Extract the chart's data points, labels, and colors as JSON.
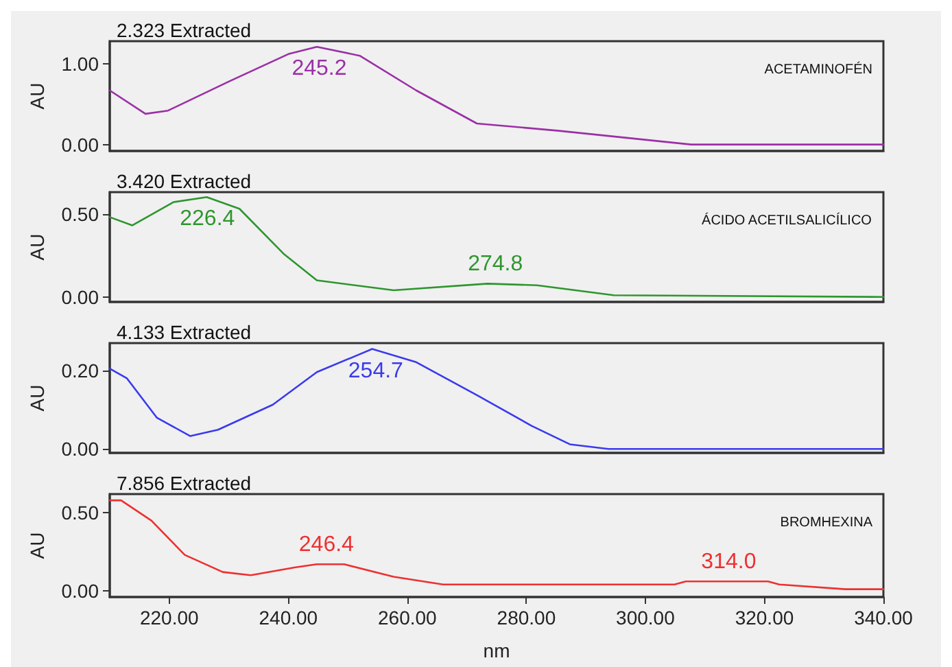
{
  "chart_data": [
    {
      "type": "line",
      "title": "2.323 Extracted",
      "ylabel": "AU",
      "tick_labels": "y",
      "grid": false,
      "marker": "none",
      "x": [
        210,
        216,
        219.8,
        230,
        240,
        244.8,
        252,
        261.5,
        271.7,
        285.5,
        307.7,
        340
      ],
      "series": [
        {
          "color": "#9b2fa6",
          "values": [
            0.67,
            0.38,
            0.42,
            0.78,
            1.12,
            1.21,
            1.1,
            0.67,
            0.26,
            0.17,
            0.0,
            0.0
          ]
        }
      ],
      "xlim": [
        210,
        340
      ],
      "ylim": [
        -0.08,
        1.28
      ],
      "yticks": [
        {
          "value": 0,
          "label": "0.00"
        },
        {
          "value": 1,
          "label": "1.00"
        }
      ],
      "annotations": [
        {
          "text": "245.2",
          "x": 245.2,
          "y": 1.21
        },
        "ACETAMINOFÉN"
      ]
    },
    {
      "type": "line",
      "title": "3.420 Extracted",
      "ylabel": "AU",
      "tick_labels": "y",
      "grid": false,
      "marker": "none",
      "x": [
        210,
        213.8,
        220.7,
        226.3,
        231.8,
        239.2,
        244.8,
        257.7,
        273.5,
        281.8,
        294.7,
        340
      ],
      "series": [
        {
          "color": "#2e962e",
          "values": [
            0.48,
            0.43,
            0.57,
            0.6,
            0.53,
            0.26,
            0.1,
            0.04,
            0.08,
            0.07,
            0.01,
            0.0
          ]
        }
      ],
      "xlim": [
        210,
        340
      ],
      "ylim": [
        -0.03,
        0.63
      ],
      "yticks": [
        {
          "value": 0,
          "label": "0.00"
        },
        {
          "value": 0.5,
          "label": "0.50"
        }
      ],
      "annotations": [
        {
          "text": "226.4",
          "x": 226.4,
          "y": 0.6
        },
        {
          "text": "274.8",
          "x": 274.8,
          "y": 0.08
        },
        "ÁCIDO ACETILSALICÍLICO"
      ]
    },
    {
      "type": "line",
      "title": "4.133 Extracted",
      "ylabel": "AU",
      "tick_labels": "y",
      "grid": false,
      "marker": "none",
      "x": [
        210,
        212.9,
        217.9,
        223.5,
        228.2,
        237.4,
        244.8,
        254.1,
        261.4,
        271.6,
        280.9,
        287.3,
        293.8,
        340
      ],
      "series": [
        {
          "color": "#3a3aee",
          "values": [
            0.205,
            0.18,
            0.08,
            0.033,
            0.049,
            0.113,
            0.196,
            0.255,
            0.222,
            0.138,
            0.059,
            0.012,
            0.0,
            0.0
          ]
        }
      ],
      "xlim": [
        210,
        340
      ],
      "ylim": [
        -0.01,
        0.27
      ],
      "yticks": [
        {
          "value": 0,
          "label": "0.00"
        },
        {
          "value": 0.2,
          "label": "0.20"
        }
      ],
      "annotations": [
        {
          "text": "254.7",
          "x": 254.7,
          "y": 0.255
        }
      ]
    },
    {
      "type": "line",
      "title": "7.856 Extracted",
      "ylabel": "AU",
      "xlabel": "nm",
      "grid": false,
      "marker": "none",
      "x": [
        210,
        211.9,
        217,
        222.6,
        229,
        233.7,
        241.2,
        244.8,
        249.4,
        257.7,
        266,
        304.9,
        306.8,
        320.6,
        322.5,
        333.6,
        340
      ],
      "series": [
        {
          "color": "#ee3030",
          "values": [
            0.58,
            0.58,
            0.45,
            0.23,
            0.12,
            0.1,
            0.15,
            0.17,
            0.17,
            0.09,
            0.04,
            0.04,
            0.06,
            0.06,
            0.04,
            0.01,
            0.01
          ]
        }
      ],
      "xlim": [
        210,
        340
      ],
      "xticks": [
        {
          "value": 220,
          "label": "220.00"
        },
        {
          "value": 240,
          "label": "240.00"
        },
        {
          "value": 260,
          "label": "260.00"
        },
        {
          "value": 280,
          "label": "280.00"
        },
        {
          "value": 300,
          "label": "300.00"
        },
        {
          "value": 320,
          "label": "320.00"
        },
        {
          "value": 340,
          "label": "340.00"
        }
      ],
      "ylim": [
        -0.04,
        0.62
      ],
      "yticks": [
        {
          "value": 0,
          "label": "0.00"
        },
        {
          "value": 0.5,
          "label": "0.50"
        }
      ],
      "annotations": [
        {
          "text": "246.4",
          "x": 246.4,
          "y": 0.17
        },
        {
          "text": "314.0",
          "x": 314.0,
          "y": 0.06
        },
        "BROMHEXINA"
      ]
    }
  ]
}
